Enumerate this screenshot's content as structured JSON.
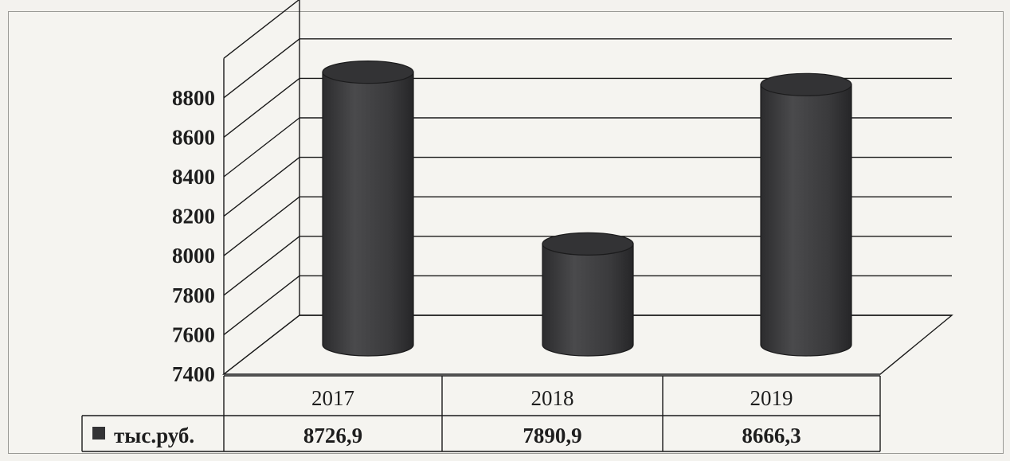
{
  "chart_data": {
    "type": "bar",
    "style": "3d-cylinder",
    "categories": [
      "2017",
      "2018",
      "2019"
    ],
    "series": [
      {
        "name": "тыс.руб.",
        "values": [
          8726.9,
          7890.9,
          8666.3
        ],
        "value_labels": [
          "8726,9",
          "7890,9",
          "8666,3"
        ]
      }
    ],
    "ylim": [
      7400,
      8800
    ],
    "yticks": [
      7400,
      7600,
      7800,
      8000,
      8200,
      8400,
      8600,
      8800
    ],
    "grid": true,
    "legend": "in-table",
    "data_table": true,
    "colors": {
      "bar": "#3b3b3d",
      "grid": "#1a1a1a",
      "background": "#f5f4f0"
    }
  }
}
